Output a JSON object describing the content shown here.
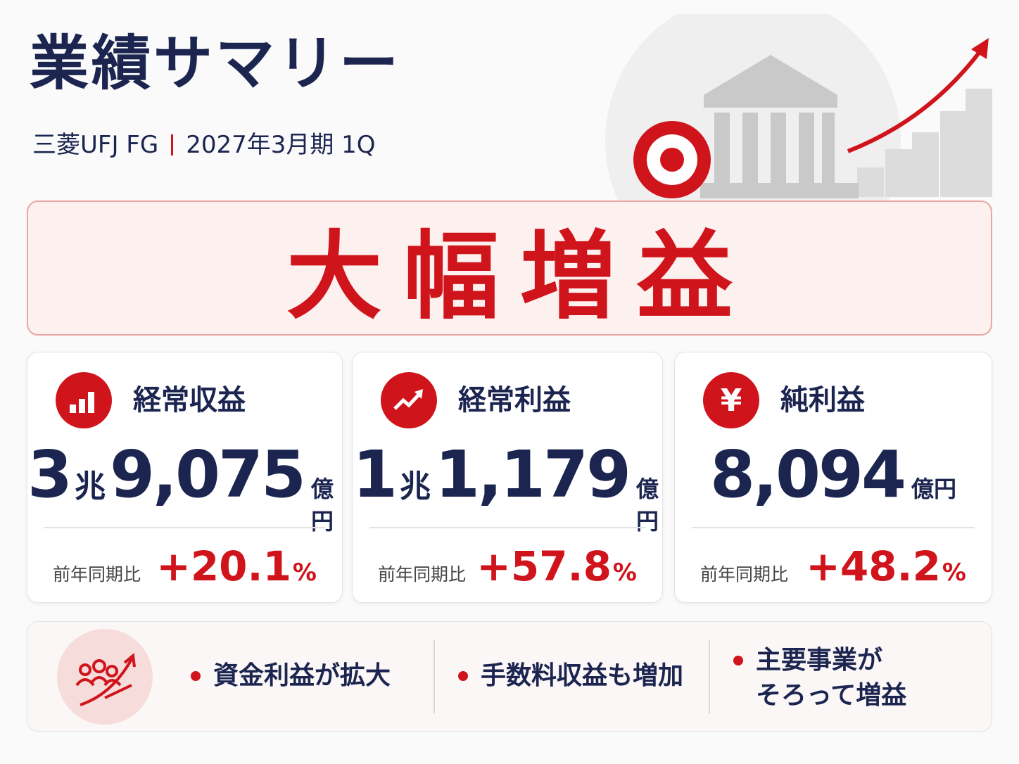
{
  "header": {
    "title": "業績サマリー",
    "company": "三菱UFJ FG",
    "period": "2027年3月期 1Q"
  },
  "headline": "大幅増益",
  "cards": [
    {
      "label": "経常収益",
      "value": {
        "major": "3",
        "major_unit": "兆",
        "minor": "9,075",
        "unit": "億円"
      },
      "compare_label": "前年同期比",
      "change": "+20.1",
      "change_unit": "%"
    },
    {
      "label": "経常利益",
      "value": {
        "major": "1",
        "major_unit": "兆",
        "minor": "1,179",
        "unit": "億円"
      },
      "compare_label": "前年同期比",
      "change": "+57.8",
      "change_unit": "%"
    },
    {
      "label": "純利益",
      "icon_text": "¥",
      "value": {
        "minor": "8,094",
        "unit": "億円"
      },
      "compare_label": "前年同期比",
      "change": "+48.2",
      "change_unit": "%"
    }
  ],
  "points": [
    [
      "資金利益が拡大"
    ],
    [
      "手数料収益も増加"
    ],
    [
      "主要事業が",
      "そろって増益"
    ]
  ]
}
